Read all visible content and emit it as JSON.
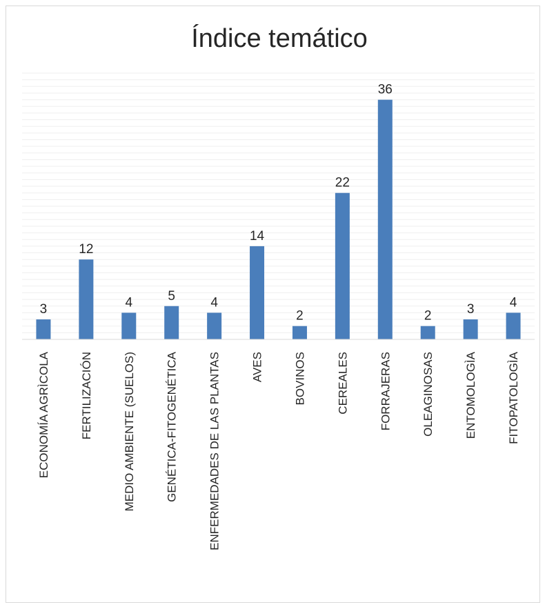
{
  "chart_data": {
    "type": "bar",
    "title": "Índice temático",
    "xlabel": "",
    "ylabel": "",
    "categories": [
      "ECONOMÍA AGRÌCOLA",
      "FERTILIZACIÓN",
      "MEDIO AMBIENTE (SUELOS)",
      "GENÉTICA-FITOGENÉTICA",
      "ENFERMEDADES DE LAS PLANTAS",
      "AVES",
      "BOVINOS",
      "CEREALES",
      "FORRAJERAS",
      "OLEAGINOSAS",
      "ENTOMOLOGÌA",
      "FITOPATOLOGÌA"
    ],
    "values": [
      3,
      12,
      4,
      5,
      4,
      14,
      2,
      22,
      36,
      2,
      3,
      4
    ],
    "ylim": [
      0,
      40
    ],
    "minor_gridlines": true,
    "legend": "none",
    "colors": {
      "bar": "#4a7ebb",
      "gridline": "#efefef",
      "axis": "#d9d9d9",
      "text": "#262626"
    }
  }
}
